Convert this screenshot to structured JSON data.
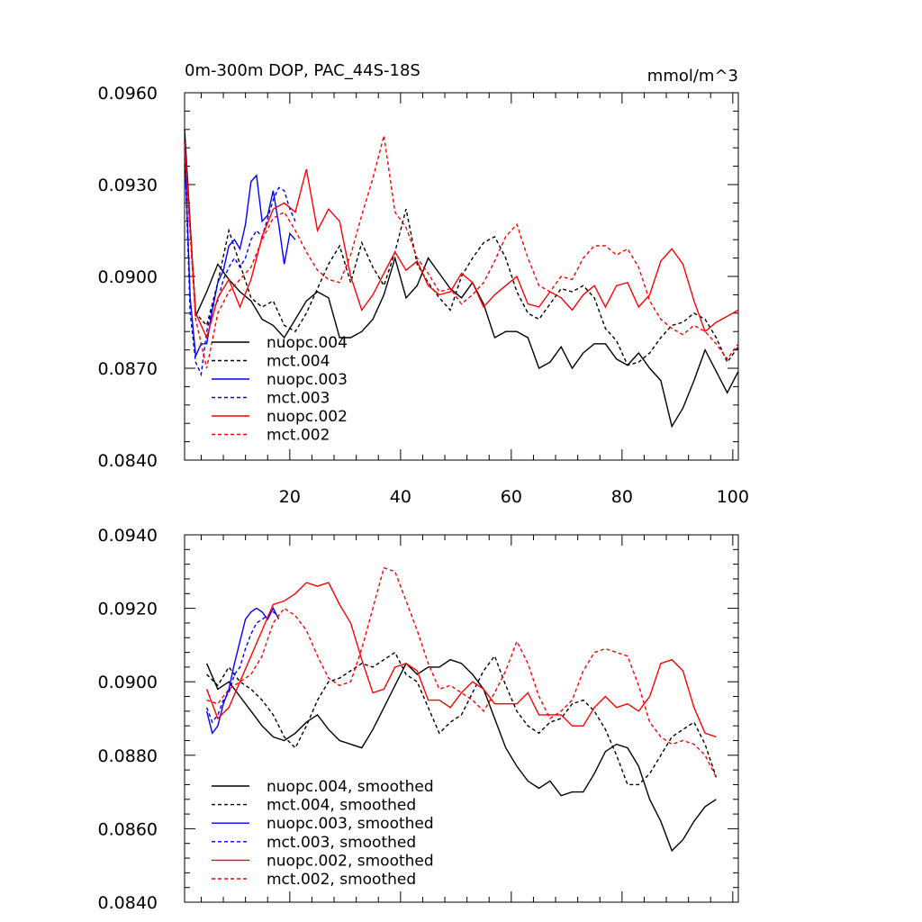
{
  "chart_data": [
    {
      "type": "line",
      "title": "0m-300m DOP, PAC_44S-18S",
      "units": "mmol/m^3",
      "xlabel": "",
      "ylabel": "",
      "xlim": [
        1,
        101
      ],
      "ylim": [
        0.084,
        0.096
      ],
      "xticks": [
        20,
        40,
        60,
        80,
        100
      ],
      "xtick_labels": [
        "20",
        "40",
        "60",
        "80",
        "100"
      ],
      "yticks": [
        0.084,
        0.087,
        0.09,
        0.093,
        0.096
      ],
      "ytick_labels": [
        "0.0840",
        "0.0870",
        "0.0900",
        "0.0930",
        "0.0960"
      ],
      "legend_position": "lower-left",
      "series": [
        {
          "name": "nuopc.004",
          "color": "#000000",
          "dash": "solid",
          "x": [
            1,
            3,
            5,
            7,
            9,
            11,
            13,
            15,
            17,
            19,
            21,
            23,
            25,
            27,
            29,
            31,
            33,
            35,
            37,
            39,
            41,
            43,
            45,
            47,
            49,
            51,
            53,
            55,
            57,
            59,
            61,
            63,
            65,
            67,
            69,
            71,
            73,
            75,
            77,
            79,
            81,
            83,
            85,
            87,
            89,
            91,
            93,
            95,
            97,
            99,
            101
          ],
          "values": [
            0.0948,
            0.0887,
            0.0895,
            0.0904,
            0.0899,
            0.0895,
            0.0892,
            0.0886,
            0.0884,
            0.088,
            0.0886,
            0.0892,
            0.0895,
            0.0893,
            0.088,
            0.088,
            0.0882,
            0.0886,
            0.0894,
            0.0906,
            0.0893,
            0.0897,
            0.0906,
            0.0901,
            0.0896,
            0.0893,
            0.0898,
            0.0891,
            0.088,
            0.0882,
            0.0882,
            0.088,
            0.087,
            0.0872,
            0.0877,
            0.087,
            0.0875,
            0.0878,
            0.0878,
            0.0873,
            0.0871,
            0.0875,
            0.087,
            0.0866,
            0.0851,
            0.0857,
            0.0866,
            0.0876,
            0.0869,
            0.0862,
            0.0869
          ]
        },
        {
          "name": "mct.004",
          "color": "#000000",
          "dash": "dashed",
          "x": [
            1,
            3,
            5,
            7,
            9,
            11,
            13,
            15,
            17,
            19,
            21,
            23,
            25,
            27,
            29,
            31,
            33,
            35,
            37,
            39,
            41,
            43,
            45,
            47,
            49,
            51,
            53,
            55,
            57,
            59,
            61,
            63,
            65,
            67,
            69,
            71,
            73,
            75,
            77,
            79,
            81,
            83,
            85,
            87,
            89,
            91,
            93,
            95,
            97,
            99,
            101
          ],
          "values": [
            0.0944,
            0.0888,
            0.0884,
            0.0898,
            0.0915,
            0.0904,
            0.0893,
            0.089,
            0.0892,
            0.0884,
            0.0882,
            0.0888,
            0.0896,
            0.0904,
            0.091,
            0.0898,
            0.0911,
            0.0903,
            0.0897,
            0.0908,
            0.0922,
            0.0904,
            0.0898,
            0.0893,
            0.0889,
            0.09,
            0.0906,
            0.0911,
            0.0913,
            0.0906,
            0.0895,
            0.0888,
            0.0886,
            0.0891,
            0.0896,
            0.0895,
            0.0897,
            0.0893,
            0.0883,
            0.0879,
            0.0871,
            0.0872,
            0.0875,
            0.088,
            0.0884,
            0.0885,
            0.0888,
            0.0886,
            0.088,
            0.0872,
            0.0877
          ]
        },
        {
          "name": "nuopc.003",
          "color": "#0000ff",
          "dash": "solid",
          "x": [
            1,
            2,
            3,
            4,
            5,
            6,
            7,
            8,
            9,
            10,
            11,
            12,
            13,
            14,
            15,
            16,
            17,
            18,
            19,
            20,
            21
          ],
          "values": [
            0.0944,
            0.0893,
            0.0874,
            0.0878,
            0.0878,
            0.0889,
            0.0898,
            0.0902,
            0.091,
            0.0912,
            0.0909,
            0.0917,
            0.0931,
            0.0933,
            0.0918,
            0.092,
            0.0928,
            0.0917,
            0.0904,
            0.0914,
            0.0912
          ]
        },
        {
          "name": "mct.003",
          "color": "#0000ff",
          "dash": "dashed",
          "x": [
            1,
            2,
            3,
            4,
            5,
            6,
            7,
            8,
            9,
            10,
            11,
            12,
            13,
            14,
            15,
            16,
            17,
            18,
            19,
            20,
            21
          ],
          "values": [
            0.0942,
            0.0888,
            0.0872,
            0.0868,
            0.0882,
            0.089,
            0.0892,
            0.0899,
            0.0903,
            0.0906,
            0.0903,
            0.0906,
            0.0912,
            0.0915,
            0.0913,
            0.0919,
            0.0925,
            0.0929,
            0.0928,
            0.0922,
            0.0918
          ]
        },
        {
          "name": "nuopc.002",
          "color": "#ff0000",
          "dash": "solid",
          "x": [
            1,
            3,
            5,
            7,
            9,
            11,
            13,
            15,
            17,
            19,
            21,
            23,
            25,
            27,
            29,
            31,
            33,
            35,
            37,
            39,
            41,
            43,
            45,
            47,
            49,
            51,
            53,
            55,
            57,
            59,
            61,
            63,
            65,
            67,
            69,
            71,
            73,
            75,
            77,
            79,
            81,
            83,
            85,
            87,
            89,
            91,
            93,
            95,
            97,
            99,
            101
          ],
          "values": [
            0.0944,
            0.0888,
            0.088,
            0.0893,
            0.0899,
            0.089,
            0.0899,
            0.0913,
            0.0922,
            0.0924,
            0.0921,
            0.0935,
            0.0915,
            0.0922,
            0.0918,
            0.09,
            0.0889,
            0.0894,
            0.0901,
            0.0908,
            0.0902,
            0.0905,
            0.0897,
            0.0894,
            0.0895,
            0.0901,
            0.0898,
            0.089,
            0.0894,
            0.0897,
            0.09,
            0.0891,
            0.089,
            0.0895,
            0.0893,
            0.0889,
            0.0894,
            0.0897,
            0.089,
            0.0897,
            0.0898,
            0.089,
            0.0894,
            0.0905,
            0.0909,
            0.0904,
            0.0892,
            0.0882,
            0.0885,
            0.0887,
            0.0889
          ]
        },
        {
          "name": "mct.002",
          "color": "#ff0000",
          "dash": "dashed",
          "x": [
            1,
            3,
            5,
            7,
            9,
            11,
            13,
            15,
            17,
            19,
            21,
            23,
            25,
            27,
            29,
            31,
            33,
            35,
            37,
            39,
            41,
            43,
            45,
            47,
            49,
            51,
            53,
            55,
            57,
            59,
            61,
            63,
            65,
            67,
            69,
            71,
            73,
            75,
            77,
            79,
            81,
            83,
            85,
            87,
            89,
            91,
            93,
            95,
            97,
            99,
            101
          ],
          "values": [
            0.0942,
            0.0886,
            0.087,
            0.0888,
            0.0895,
            0.0899,
            0.0903,
            0.0912,
            0.0919,
            0.0921,
            0.0915,
            0.0908,
            0.0902,
            0.0899,
            0.0898,
            0.0907,
            0.092,
            0.0932,
            0.0946,
            0.0921,
            0.0916,
            0.0906,
            0.0901,
            0.0895,
            0.0896,
            0.0891,
            0.0894,
            0.0898,
            0.0905,
            0.0913,
            0.0917,
            0.0906,
            0.0897,
            0.0895,
            0.09,
            0.0899,
            0.0906,
            0.091,
            0.091,
            0.0907,
            0.0909,
            0.0903,
            0.0892,
            0.0886,
            0.0883,
            0.0881,
            0.0884,
            0.0882,
            0.0878,
            0.0873,
            0.0878
          ]
        }
      ]
    },
    {
      "type": "line",
      "title": "",
      "xlabel": "",
      "ylabel": "",
      "xlim": [
        1,
        101
      ],
      "ylim": [
        0.084,
        0.094
      ],
      "yticks": [
        0.084,
        0.086,
        0.088,
        0.09,
        0.092,
        0.094
      ],
      "ytick_labels": [
        "0.0840",
        "0.0860",
        "0.0880",
        "0.0900",
        "0.0920",
        "0.0940"
      ],
      "legend_position": "lower-left",
      "series": [
        {
          "name": "nuopc.004, smoothed",
          "color": "#000000",
          "dash": "solid",
          "x": [
            5,
            7,
            9,
            11,
            13,
            15,
            17,
            19,
            21,
            23,
            25,
            27,
            29,
            31,
            33,
            35,
            37,
            39,
            41,
            43,
            45,
            47,
            49,
            51,
            53,
            55,
            57,
            59,
            61,
            63,
            65,
            67,
            69,
            71,
            73,
            75,
            77,
            79,
            81,
            83,
            85,
            87,
            89,
            91,
            93,
            95,
            97
          ],
          "values": [
            0.0905,
            0.0898,
            0.09,
            0.0896,
            0.0892,
            0.0888,
            0.0885,
            0.0884,
            0.0886,
            0.0889,
            0.0891,
            0.0887,
            0.0884,
            0.0883,
            0.0882,
            0.0887,
            0.0893,
            0.0899,
            0.0905,
            0.0902,
            0.0904,
            0.0904,
            0.0906,
            0.0905,
            0.0902,
            0.0898,
            0.089,
            0.0882,
            0.0877,
            0.0873,
            0.0871,
            0.0873,
            0.0869,
            0.087,
            0.087,
            0.0875,
            0.0881,
            0.0883,
            0.0882,
            0.0877,
            0.0868,
            0.0862,
            0.0854,
            0.0857,
            0.0862,
            0.0866,
            0.0868
          ]
        },
        {
          "name": "mct.004, smoothed",
          "color": "#000000",
          "dash": "dashed",
          "x": [
            5,
            7,
            9,
            11,
            13,
            15,
            17,
            19,
            21,
            23,
            25,
            27,
            29,
            31,
            33,
            35,
            37,
            39,
            41,
            43,
            45,
            47,
            49,
            51,
            53,
            55,
            57,
            59,
            61,
            63,
            65,
            67,
            69,
            71,
            73,
            75,
            77,
            79,
            81,
            83,
            85,
            87,
            89,
            91,
            93,
            95,
            97
          ],
          "values": [
            0.0902,
            0.0899,
            0.0904,
            0.09,
            0.0898,
            0.0895,
            0.0891,
            0.0885,
            0.0882,
            0.0888,
            0.0895,
            0.09,
            0.0901,
            0.0903,
            0.0905,
            0.0904,
            0.0906,
            0.0908,
            0.0902,
            0.09,
            0.0893,
            0.0886,
            0.0889,
            0.0891,
            0.0897,
            0.0903,
            0.0907,
            0.0899,
            0.0892,
            0.0888,
            0.0886,
            0.0889,
            0.089,
            0.0894,
            0.0895,
            0.0892,
            0.0887,
            0.088,
            0.0872,
            0.0872,
            0.0875,
            0.088,
            0.0885,
            0.0887,
            0.0889,
            0.0883,
            0.0874
          ]
        },
        {
          "name": "nuopc.003, smoothed",
          "color": "#0000ff",
          "dash": "solid",
          "x": [
            5,
            6,
            7,
            8,
            9,
            10,
            11,
            12,
            13,
            14,
            15,
            16,
            17,
            18
          ],
          "values": [
            0.0892,
            0.0886,
            0.0888,
            0.0894,
            0.0898,
            0.0905,
            0.0911,
            0.0917,
            0.0919,
            0.092,
            0.0919,
            0.0917,
            0.092,
            0.0917
          ]
        },
        {
          "name": "mct.003, smoothed",
          "color": "#0000ff",
          "dash": "dashed",
          "x": [
            5,
            6,
            7,
            8,
            9,
            10,
            11,
            12,
            13,
            14,
            15,
            16,
            17,
            18
          ],
          "values": [
            0.0893,
            0.0889,
            0.0891,
            0.0895,
            0.0897,
            0.0902,
            0.0904,
            0.0909,
            0.0913,
            0.0916,
            0.0917,
            0.0918,
            0.0919,
            0.0918
          ]
        },
        {
          "name": "nuopc.002, smoothed",
          "color": "#ff0000",
          "dash": "solid",
          "x": [
            5,
            7,
            9,
            11,
            13,
            15,
            17,
            19,
            21,
            23,
            25,
            27,
            29,
            31,
            33,
            35,
            37,
            39,
            41,
            43,
            45,
            47,
            49,
            51,
            53,
            55,
            57,
            59,
            61,
            63,
            65,
            67,
            69,
            71,
            73,
            75,
            77,
            79,
            81,
            83,
            85,
            87,
            89,
            91,
            93,
            95,
            97
          ],
          "values": [
            0.0898,
            0.089,
            0.0893,
            0.09,
            0.0907,
            0.0914,
            0.0921,
            0.0922,
            0.0924,
            0.0927,
            0.0926,
            0.0927,
            0.0921,
            0.0916,
            0.0906,
            0.0897,
            0.0898,
            0.0904,
            0.0905,
            0.0903,
            0.0895,
            0.0895,
            0.0893,
            0.0897,
            0.09,
            0.0898,
            0.0894,
            0.0894,
            0.0894,
            0.0897,
            0.0891,
            0.0891,
            0.0891,
            0.0888,
            0.0888,
            0.0893,
            0.0896,
            0.0893,
            0.0894,
            0.0892,
            0.0896,
            0.0905,
            0.0906,
            0.0903,
            0.0893,
            0.0886,
            0.0885
          ]
        },
        {
          "name": "mct.002, smoothed",
          "color": "#ff0000",
          "dash": "dashed",
          "x": [
            5,
            7,
            9,
            11,
            13,
            15,
            17,
            19,
            21,
            23,
            25,
            27,
            29,
            31,
            33,
            35,
            37,
            39,
            41,
            43,
            45,
            47,
            49,
            51,
            53,
            55,
            57,
            59,
            61,
            63,
            65,
            67,
            69,
            71,
            73,
            75,
            77,
            79,
            81,
            83,
            85,
            87,
            89,
            91,
            93,
            95,
            97
          ],
          "values": [
            0.0895,
            0.0894,
            0.0898,
            0.09,
            0.0902,
            0.0907,
            0.0916,
            0.092,
            0.0918,
            0.0914,
            0.0907,
            0.0901,
            0.0899,
            0.09,
            0.0909,
            0.092,
            0.0931,
            0.093,
            0.0922,
            0.0914,
            0.0905,
            0.0898,
            0.0899,
            0.0897,
            0.0895,
            0.0892,
            0.0897,
            0.0903,
            0.0911,
            0.0905,
            0.0896,
            0.089,
            0.0892,
            0.0895,
            0.0903,
            0.0908,
            0.0909,
            0.0908,
            0.0907,
            0.0899,
            0.0889,
            0.0885,
            0.0883,
            0.0884,
            0.0883,
            0.088,
            0.0874
          ]
        }
      ]
    }
  ]
}
